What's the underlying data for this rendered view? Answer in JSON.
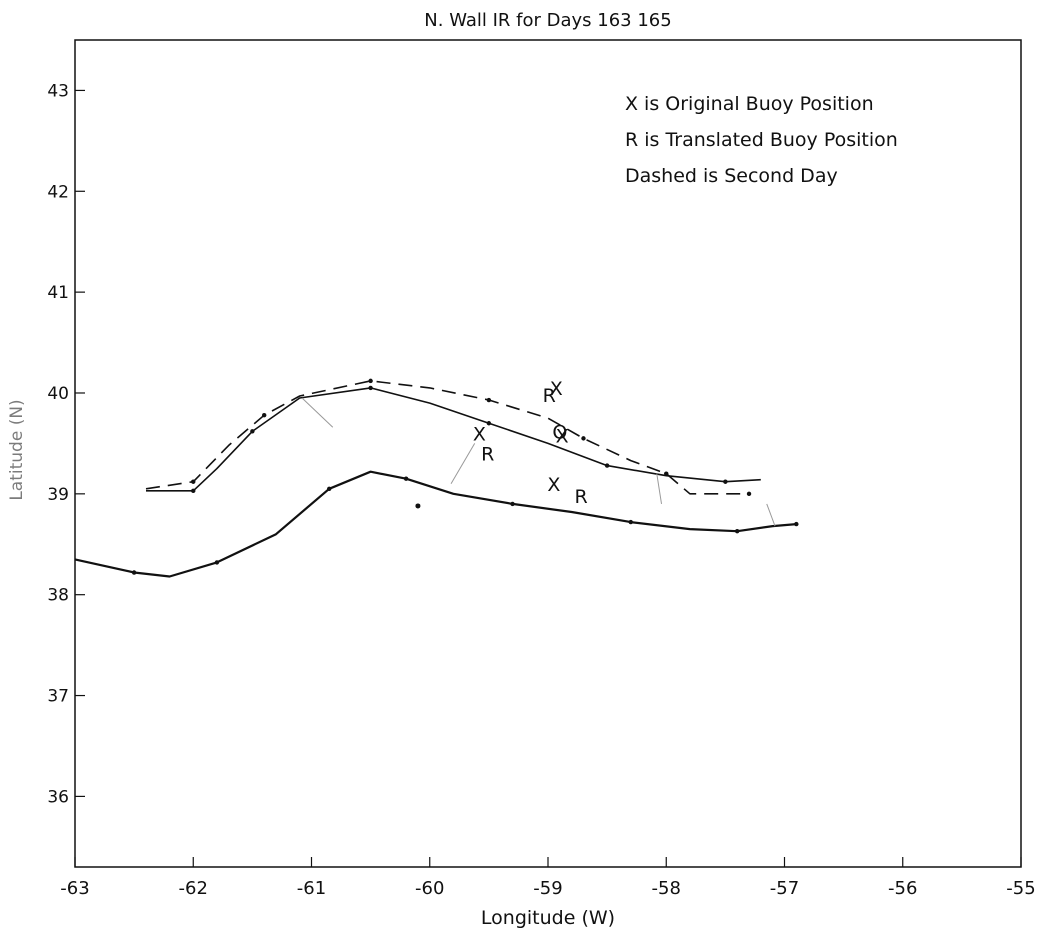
{
  "chart_data": {
    "type": "line",
    "title": "N. Wall IR for Days 163 165",
    "xlabel": "Longitude (W)",
    "ylabel": "Latitude (N)",
    "xlim": [
      -63,
      -55
    ],
    "ylim": [
      35.3,
      43.5
    ],
    "x_ticks": [
      -63,
      -62,
      -61,
      -60,
      -59,
      -58,
      -57,
      -56,
      -55
    ],
    "x_tick_labels": [
      "-63",
      "-62",
      "-61",
      "-60",
      "-59",
      "-58",
      "-57",
      "-56",
      "-55"
    ],
    "y_ticks": [
      36,
      37,
      38,
      39,
      40,
      41,
      42,
      43
    ],
    "y_tick_labels": [
      "36",
      "37",
      "38",
      "39",
      "40",
      "41",
      "42",
      "43"
    ],
    "grid": false,
    "annotations": [
      "X is Original Buoy Position",
      "R is Translated Buoy Position",
      "Dashed is Second Day"
    ],
    "series": [
      {
        "style": "solid",
        "points": [
          [
            -62.4,
            39.03
          ],
          [
            -62.0,
            39.03
          ],
          [
            -61.8,
            39.25
          ],
          [
            -61.5,
            39.62
          ],
          [
            -61.1,
            39.95
          ],
          [
            -60.5,
            40.05
          ],
          [
            -60.0,
            39.9
          ],
          [
            -59.5,
            39.7
          ],
          [
            -59.0,
            39.5
          ],
          [
            -58.5,
            39.28
          ],
          [
            -58.0,
            39.18
          ],
          [
            -57.5,
            39.12
          ],
          [
            -57.2,
            39.14
          ]
        ]
      },
      {
        "style": "dashed",
        "points": [
          [
            -62.4,
            39.05
          ],
          [
            -62.0,
            39.12
          ],
          [
            -61.7,
            39.48
          ],
          [
            -61.4,
            39.78
          ],
          [
            -61.1,
            39.97
          ],
          [
            -60.5,
            40.12
          ],
          [
            -60.0,
            40.05
          ],
          [
            -59.5,
            39.93
          ],
          [
            -59.0,
            39.75
          ],
          [
            -58.7,
            39.55
          ],
          [
            -58.3,
            39.33
          ],
          [
            -58.0,
            39.2
          ],
          [
            -57.8,
            39.0
          ],
          [
            -57.3,
            39.0
          ]
        ]
      },
      {
        "style": "solid",
        "points": [
          [
            -63.0,
            38.35
          ],
          [
            -62.5,
            38.22
          ],
          [
            -62.2,
            38.18
          ],
          [
            -61.8,
            38.32
          ],
          [
            -61.3,
            38.6
          ],
          [
            -60.85,
            39.05
          ],
          [
            -60.5,
            39.22
          ],
          [
            -60.2,
            39.15
          ],
          [
            -59.8,
            39.0
          ],
          [
            -59.3,
            38.9
          ],
          [
            -58.8,
            38.82
          ],
          [
            -58.3,
            38.72
          ],
          [
            -57.8,
            38.65
          ],
          [
            -57.4,
            38.63
          ],
          [
            -57.1,
            38.68
          ],
          [
            -56.9,
            38.7
          ]
        ]
      }
    ],
    "connectors": [
      [
        [
          -61.08,
          39.95
        ],
        [
          -60.82,
          39.66
        ]
      ],
      [
        [
          -59.82,
          39.1
        ],
        [
          -59.62,
          39.5
        ]
      ],
      [
        [
          -58.08,
          39.2
        ],
        [
          -58.04,
          38.9
        ]
      ],
      [
        [
          -57.15,
          38.9
        ],
        [
          -57.08,
          38.68
        ]
      ]
    ],
    "markers": [
      {
        "label": "X",
        "x": -58.93,
        "y": 40.05
      },
      {
        "label": "R",
        "x": -58.99,
        "y": 39.98
      },
      {
        "label": "X",
        "x": -59.58,
        "y": 39.6
      },
      {
        "label": "R",
        "x": -59.51,
        "y": 39.4
      },
      {
        "label": "O",
        "x": -58.9,
        "y": 39.62
      },
      {
        "label": "X",
        "x": -58.88,
        "y": 39.58
      },
      {
        "label": "X",
        "x": -58.95,
        "y": 39.1
      },
      {
        "label": "R",
        "x": -58.72,
        "y": 38.98
      }
    ],
    "dots": [
      [
        -60.1,
        38.88
      ]
    ]
  }
}
